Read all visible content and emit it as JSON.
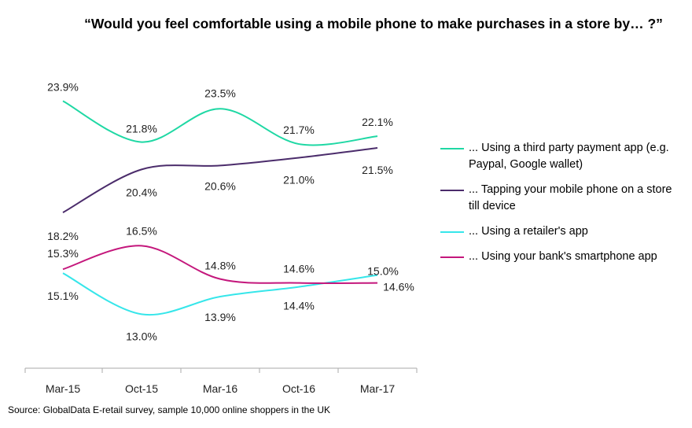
{
  "chart_data": {
    "type": "line",
    "title": "“Would you feel comfortable using a mobile phone to make purchases in a store by… ?”",
    "categories": [
      "Mar-15",
      "Oct-15",
      "Mar-16",
      "Oct-16",
      "Mar-17"
    ],
    "ylim": [
      10,
      25
    ],
    "grid": false,
    "legend_position": "right",
    "series": [
      {
        "name": "... Using a third party payment app (e.g. Paypal, Google wallet)",
        "color": "#1fd8a4",
        "values": [
          23.9,
          21.8,
          23.5,
          21.7,
          22.1
        ],
        "labels": [
          "23.9%",
          "21.8%",
          "23.5%",
          "21.7%",
          "22.1%"
        ]
      },
      {
        "name": "... Tapping your mobile phone on a store till device",
        "color": "#4b2c6b",
        "values": [
          18.2,
          20.4,
          20.6,
          21.0,
          21.5
        ],
        "labels": [
          "18.2%",
          "20.4%",
          "20.6%",
          "21.0%",
          "21.5%"
        ]
      },
      {
        "name": "... Using a retailer's app",
        "color": "#36e6ea",
        "values": [
          15.1,
          13.0,
          13.9,
          14.4,
          15.0
        ],
        "labels": [
          "15.1%",
          "13.0%",
          "13.9%",
          "14.4%",
          "15.0%"
        ]
      },
      {
        "name": "... Using your bank's smartphone app",
        "color": "#c4177c",
        "values": [
          15.3,
          16.5,
          14.8,
          14.6,
          14.6
        ],
        "labels": [
          "15.3%",
          "16.5%",
          "14.8%",
          "14.6%",
          "14.6%"
        ]
      }
    ]
  },
  "source": "Source: GlobalData E-retail survey, sample 10,000 online  shoppers in the UK"
}
